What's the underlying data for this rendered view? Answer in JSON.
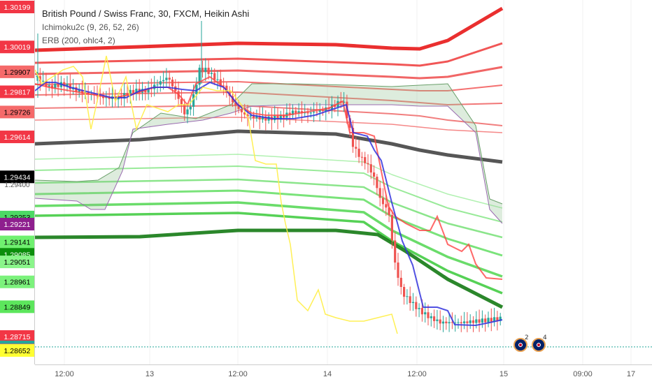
{
  "header": {
    "title": "British Pound / Swiss Franc, 30, FXCM, Heikin Ashi",
    "indicators": [
      "Ichimoku2c (9, 26, 52, 26)",
      "ERB (200, ohlc4, 2)"
    ]
  },
  "chart_data": {
    "type": "line",
    "symbol": "GBPCHF",
    "timeframe": "30",
    "x_axis_labels": [
      "12:00",
      "13",
      "12:00",
      "14",
      "12:00",
      "15",
      "09:00",
      "17"
    ],
    "y_axis_ticks": [
      "1.29400"
    ],
    "price_labels": [
      {
        "value": "1.30199",
        "bg": "#f23645",
        "fg": "#ffffff"
      },
      {
        "value": "1.30019",
        "bg": "#f23645",
        "fg": "#ffffff"
      },
      {
        "value": "1.29907",
        "bg": "#f56a6a",
        "fg": "#000000"
      },
      {
        "value": "1.29817",
        "bg": "#f23645",
        "fg": "#ffffff"
      },
      {
        "value": "1.29726",
        "bg": "#f56a6a",
        "fg": "#000000"
      },
      {
        "value": "1.29614",
        "bg": "#f23645",
        "fg": "#ffffff"
      },
      {
        "value": "1.29434",
        "bg": "#000000",
        "fg": "#ffffff"
      },
      {
        "value": "1.29253",
        "bg": "#4cd964",
        "fg": "#000000"
      },
      {
        "value": "1.29221",
        "bg": "#8e1f8e",
        "fg": "#ffffff"
      },
      {
        "value": "1.29141",
        "bg": "#6ff06f",
        "fg": "#000000"
      },
      {
        "value": "1.29085",
        "bg": "#0b8e0b",
        "fg": "#ffffff"
      },
      {
        "value": "1.29051",
        "bg": "#8af58a",
        "fg": "#000000"
      },
      {
        "value": "1.28961",
        "bg": "#7cf27c",
        "fg": "#000000"
      },
      {
        "value": "1.28849",
        "bg": "#5ce65c",
        "fg": "#000000"
      },
      {
        "value": "1.28715",
        "bg": "#f23645",
        "fg": "#ffffff"
      },
      {
        "value": "1.28668",
        "bg": "#26a69a",
        "fg": "#000000"
      },
      {
        "value": "1.28654",
        "bg": "#f56a6a",
        "fg": "#000000"
      },
      {
        "value": "1.28652",
        "bg": "#ffff33",
        "fg": "#000000"
      }
    ],
    "event_badges": [
      {
        "count": "2"
      },
      {
        "count": "4"
      }
    ],
    "colors": {
      "bull": "#26a69a",
      "bear": "#ef5350",
      "conversion": "#ff4444",
      "base": "#3333dd",
      "lagging": "#ffee44",
      "cloud": "#8fbf8f",
      "band_mid": "#404040"
    }
  }
}
